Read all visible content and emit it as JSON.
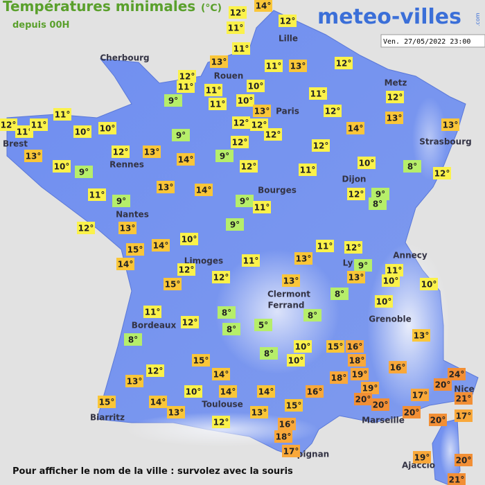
{
  "header": {
    "title": "Températures minimales",
    "unit": "(°C)",
    "subtitle": "depuis 00H",
    "logo": "meteo-villes",
    "logo_suffix": ".com",
    "timestamp": "Ven. 27/05/2022 23:00"
  },
  "cities": [
    "Lille",
    "Cherbourg",
    "Rouen",
    "Metz",
    "Paris",
    "Brest",
    "Strasbourg",
    "Rennes",
    "Dijon",
    "Bourges",
    "Nantes",
    "Annecy",
    "Limoges",
    "Ly",
    "Clermont",
    "Ferrand",
    "Grenoble",
    "Bordeaux",
    "Nice",
    "Toulouse",
    "Marseille",
    "Biarritz",
    "pignan",
    "Ajaccio"
  ],
  "temperatures": [
    "14°",
    "12°",
    "12°",
    "11°",
    "11°",
    "13°",
    "11°",
    "13°",
    "12°",
    "12°",
    "11°",
    "11°",
    "10°",
    "11°",
    "10°",
    "13°",
    "11°",
    "12°",
    "12°",
    "13°",
    "9°",
    "11°",
    "12°",
    "11°",
    "11°",
    "10°",
    "10°",
    "12°",
    "12°",
    "12°",
    "14°",
    "13°",
    "9°",
    "12°",
    "13°",
    "12°",
    "12°",
    "13°",
    "10°",
    "9°",
    "14°",
    "9°",
    "12°",
    "11°",
    "10°",
    "8°",
    "12°",
    "13°",
    "14°",
    "11°",
    "9°",
    "9°",
    "11°",
    "12°",
    "9°",
    "8°",
    "12°",
    "13°",
    "9°",
    "10°",
    "11°",
    "12°",
    "15°",
    "14°",
    "14°",
    "11°",
    "13°",
    "9°",
    "11°",
    "12°",
    "12°",
    "15°",
    "13°",
    "10°",
    "13°",
    "10°",
    "8°",
    "10°",
    "11°",
    "12°",
    "8°",
    "8°",
    "5°",
    "8°",
    "13°",
    "8°",
    "8°",
    "10°",
    "15°",
    "16°",
    "10°",
    "15°",
    "18°",
    "16°",
    "12°",
    "13°",
    "14°",
    "18°",
    "19°",
    "24°",
    "20°",
    "10°",
    "14°",
    "14°",
    "16°",
    "19°",
    "17°",
    "20°",
    "21°",
    "15°",
    "14°",
    "20°",
    "13°",
    "13°",
    "15°",
    "20°",
    "17°",
    "20°",
    "12°",
    "16°",
    "18°",
    "17°",
    "19°",
    "20°",
    "21°"
  ],
  "footer": "Pour afficher le nom de la ville : survolez avec la souris"
}
